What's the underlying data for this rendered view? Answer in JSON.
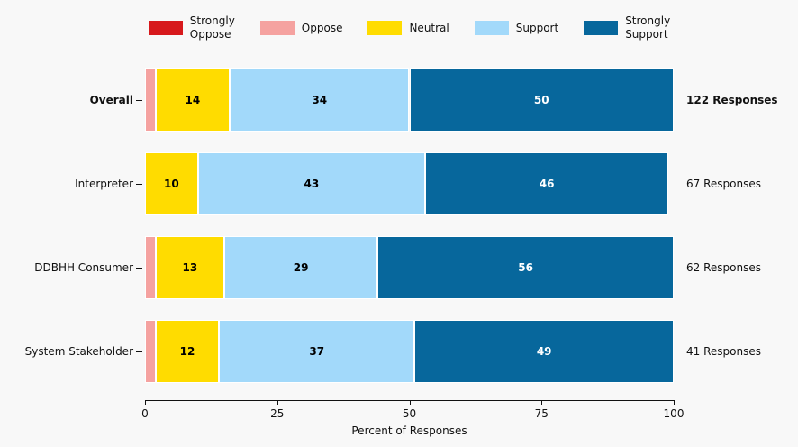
{
  "figure": {
    "background": "#f8f8f8",
    "text_color": "#111111"
  },
  "chart_data": {
    "type": "bar",
    "orientation": "horizontal-stacked",
    "title": "",
    "xlabel": "Percent of Responses",
    "ylabel": "",
    "xlim": [
      0,
      100
    ],
    "xticks": [
      0,
      25,
      50,
      75,
      100
    ],
    "xtick_labels": [
      "0",
      "25",
      "50",
      "75",
      "100"
    ],
    "grid": false,
    "legend_position": "top",
    "categories": [
      "Overall",
      "Interpreter",
      "DDBHH Consumer",
      "System Stakeholder"
    ],
    "category_styles": [
      "bold",
      "normal",
      "normal",
      "normal"
    ],
    "right_labels": [
      "122 Responses",
      "67 Responses",
      "62 Responses",
      "41 Responses"
    ],
    "right_label_styles": [
      "bold",
      "normal",
      "normal",
      "normal"
    ],
    "series": [
      {
        "name": "Strongly Oppose",
        "legend_label": "Strongly\nOppose",
        "color": "#d7191c",
        "label_color": "#000000",
        "values": [
          0,
          0,
          0,
          0
        ]
      },
      {
        "name": "Oppose",
        "legend_label": "Oppose",
        "color": "#f5a2a0",
        "label_color": "#000000",
        "values": [
          2,
          0,
          2,
          2
        ]
      },
      {
        "name": "Neutral",
        "legend_label": "Neutral",
        "color": "#ffdc00",
        "label_color": "#000000",
        "values": [
          14,
          10,
          13,
          12
        ]
      },
      {
        "name": "Support",
        "legend_label": "Support",
        "color": "#a2d9fa",
        "label_color": "#000000",
        "values": [
          34,
          43,
          29,
          37
        ]
      },
      {
        "name": "Strongly Support",
        "legend_label": "Strongly\nSupport",
        "color": "#07679c",
        "label_color": "#ffffff",
        "values": [
          50,
          46,
          56,
          49
        ]
      }
    ],
    "value_label_min": 5
  }
}
